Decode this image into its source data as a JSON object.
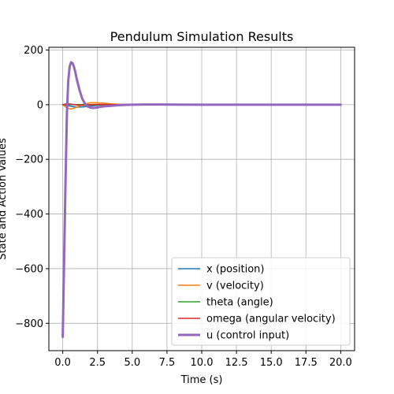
{
  "chart_data": {
    "type": "line",
    "title": "Pendulum Simulation Results",
    "xlabel": "Time (s)",
    "ylabel": "State and Action Values",
    "xlim": [
      -1.0,
      21.0
    ],
    "ylim": [
      -900,
      210
    ],
    "xticks": [
      0.0,
      2.5,
      5.0,
      7.5,
      10.0,
      12.5,
      15.0,
      17.5,
      20.0
    ],
    "xtick_labels": [
      "0.0",
      "2.5",
      "5.0",
      "7.5",
      "10.0",
      "12.5",
      "15.0",
      "17.5",
      "20.0"
    ],
    "yticks": [
      -800,
      -600,
      -400,
      -200,
      0,
      200
    ],
    "ytick_labels": [
      "−800",
      "−600",
      "−400",
      "−200",
      "0",
      "200"
    ],
    "grid": true,
    "legend_position": "lower-right",
    "series": [
      {
        "name": "x (position)",
        "color": "#1f77b4",
        "line_width": "thin",
        "x": [
          0,
          0.5,
          1.0,
          1.5,
          2.0,
          2.5,
          3.0,
          3.5,
          4.0,
          5.0,
          6.0,
          8.0,
          10.0,
          12.0,
          15.0,
          20.0
        ],
        "y": [
          0,
          -5,
          -9,
          -8,
          -5,
          -2,
          0,
          1,
          1.5,
          1.5,
          1,
          0.5,
          0,
          0,
          0,
          0
        ]
      },
      {
        "name": "v (velocity)",
        "color": "#ff7f0e",
        "line_width": "thin",
        "x": [
          0,
          0.3,
          0.6,
          1.0,
          1.5,
          2.0,
          2.5,
          3.0,
          3.5,
          4.0,
          5.0,
          6.0,
          8.0,
          10.0,
          15.0,
          20.0
        ],
        "y": [
          0,
          -12,
          -16,
          -9,
          2,
          7,
          7,
          5,
          3,
          1.5,
          0,
          -0.5,
          0,
          0,
          0,
          0
        ]
      },
      {
        "name": "theta (angle)",
        "color": "#2ca02c",
        "line_width": "thin",
        "x": [
          0,
          0.5,
          1.0,
          1.5,
          2.0,
          3.0,
          4.0,
          6.0,
          10.0,
          20.0
        ],
        "y": [
          0,
          0.5,
          0.3,
          0,
          -0.2,
          0,
          0,
          0,
          0,
          0
        ]
      },
      {
        "name": "omega (angular velocity)",
        "color": "#d62728",
        "line_width": "thin",
        "x": [
          0,
          0.3,
          0.6,
          1.0,
          1.5,
          2.0,
          2.5,
          3.0,
          4.0,
          5.0,
          10.0,
          20.0
        ],
        "y": [
          0,
          3,
          2,
          -1,
          -2,
          0,
          1,
          0.5,
          0,
          0,
          0,
          0
        ]
      },
      {
        "name": "u (control input)",
        "color": "#9467bd",
        "line_width": "thick",
        "x": [
          0,
          0.1,
          0.2,
          0.3,
          0.4,
          0.5,
          0.6,
          0.7,
          0.8,
          0.9,
          1.0,
          1.2,
          1.4,
          1.6,
          1.8,
          2.0,
          2.2,
          2.4,
          2.6,
          2.8,
          3.0,
          3.5,
          4.0,
          4.5,
          5.0,
          6.0,
          7.0,
          8.0,
          10.0,
          12.5,
          15.0,
          20.0
        ],
        "y": [
          -850,
          -560,
          -280,
          -30,
          90,
          140,
          155,
          152,
          140,
          120,
          95,
          55,
          22,
          3,
          -7,
          -11,
          -12,
          -11,
          -9,
          -7,
          -6,
          -4,
          -2,
          -1,
          0,
          0.5,
          0.5,
          0.3,
          0,
          0,
          0,
          0
        ]
      }
    ]
  }
}
